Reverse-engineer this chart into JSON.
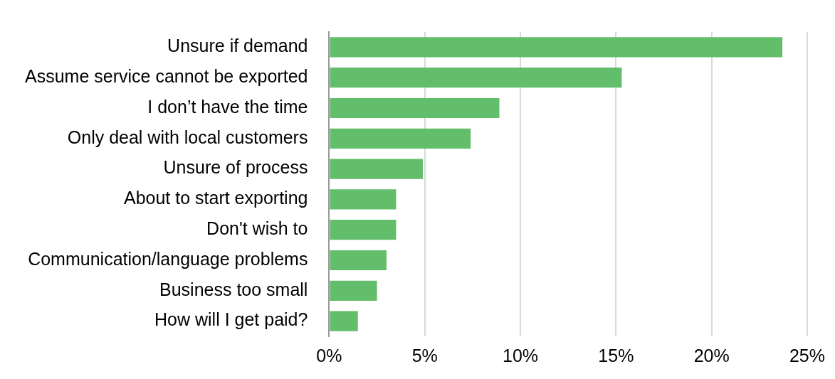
{
  "chart_data": {
    "type": "bar",
    "orientation": "horizontal",
    "categories": [
      "Unsure if demand",
      "Assume service cannot be exported",
      "I don’t have the time",
      "Only deal with local customers",
      "Unsure of process",
      "About to start exporting",
      "Don't wish to",
      "Communication/language problems",
      "Business too small",
      "How will I get paid?"
    ],
    "values": [
      23.7,
      15.3,
      8.9,
      7.4,
      4.9,
      3.5,
      3.5,
      3.0,
      2.5,
      1.5
    ],
    "color": "#63be6b",
    "xlim": [
      0,
      25
    ],
    "xticks": [
      {
        "value": 0,
        "label": "0%"
      },
      {
        "value": 5,
        "label": "5%"
      },
      {
        "value": 10,
        "label": "10%"
      },
      {
        "value": 15,
        "label": "15%"
      },
      {
        "value": 20,
        "label": "20%"
      },
      {
        "value": 25,
        "label": "25%"
      }
    ],
    "grid": "x",
    "legend": false
  }
}
